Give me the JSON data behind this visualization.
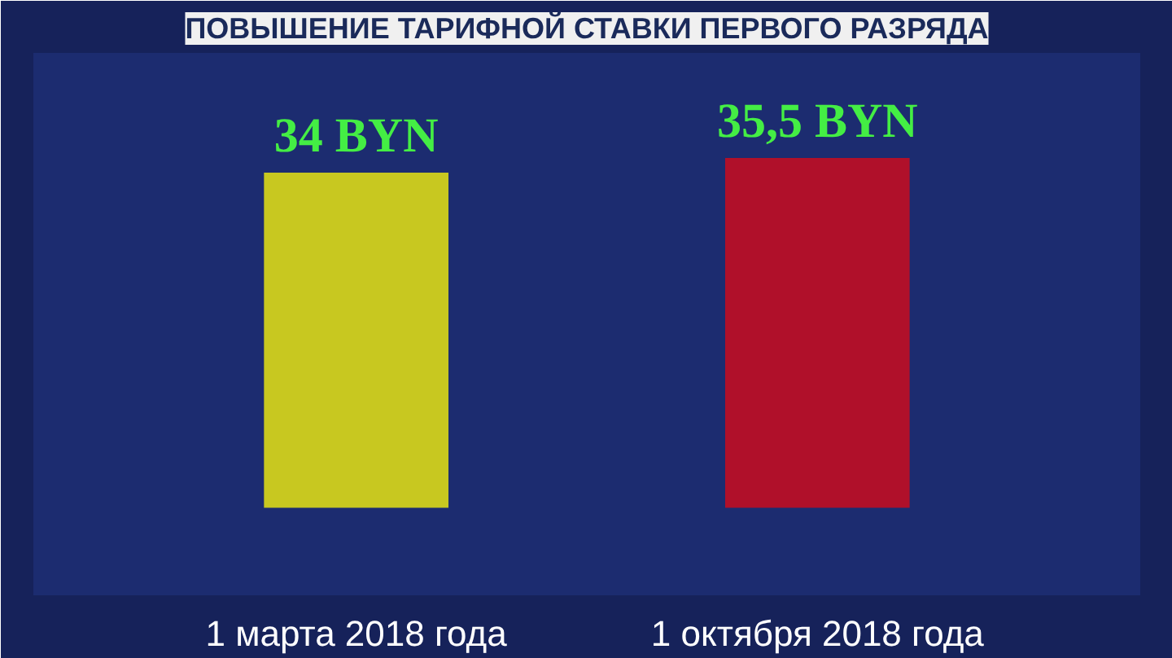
{
  "chart_data": {
    "type": "bar",
    "title": "ПОВЫШЕНИЕ ТАРИФНОЙ СТАВКИ ПЕРВОГО РАЗРЯДА",
    "categories": [
      "1 марта 2018 года",
      "1 октября 2018 года"
    ],
    "values": [
      34,
      35.5
    ],
    "colors": [
      "#c8c820",
      "#b0102a"
    ],
    "value_labels": [
      "34 BYN",
      "35,5 BYN"
    ],
    "grid": false
  }
}
